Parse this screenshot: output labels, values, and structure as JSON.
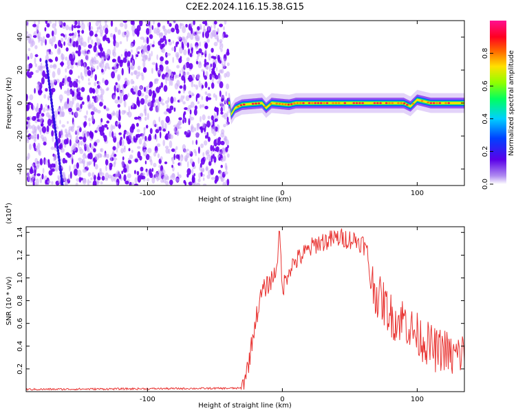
{
  "title": "C2E2.2024.116.15.38.G15",
  "colors": {
    "frame": "#000000",
    "line": "#e8312f",
    "dot_primary": "#6a00f0",
    "dot_light": "#c9a8f5",
    "background": "#ffffff"
  },
  "chart_data": [
    {
      "type": "heatmap",
      "title": "C2E2.2024.116.15.38.G15",
      "xlabel": "Height of straight line (km)",
      "ylabel": "Frequency (Hz)",
      "xlim": [
        -190,
        135
      ],
      "ylim": [
        -50,
        50
      ],
      "xticks": [
        -100,
        0,
        100
      ],
      "xtick_labels": [
        "-100",
        "0",
        "100"
      ],
      "yticks": [
        -40,
        -20,
        0,
        20,
        40
      ],
      "ytick_labels": [
        "-40",
        "-20",
        "0",
        "20",
        "40"
      ],
      "grid": false,
      "colorbar": {
        "label": "Normalized spectral amplitude",
        "range": [
          0,
          1
        ],
        "ticks": [
          0.0,
          0.2,
          0.4,
          0.6,
          0.8
        ],
        "tick_labels": [
          "0.0",
          "0.2",
          "0.4",
          "0.6",
          "0.8"
        ],
        "colormap": "rainbow (purple→blue→cyan→green→yellow→red→magenta)"
      },
      "regions": [
        {
          "name": "noise",
          "x_range": [
            -190,
            -40
          ],
          "freq_range": [
            -50,
            50
          ],
          "amplitude": 0.05
        },
        {
          "name": "signal",
          "x_range": [
            -40,
            135
          ],
          "center_freq": 0,
          "amplitude": 0.9
        }
      ],
      "signal_track": [
        {
          "x": -38,
          "freq": -7
        },
        {
          "x": -35,
          "freq": -3
        },
        {
          "x": -30,
          "freq": -1
        },
        {
          "x": -15,
          "freq": 0
        },
        {
          "x": -12,
          "freq": -3
        },
        {
          "x": -8,
          "freq": 0
        },
        {
          "x": 5,
          "freq": -1
        },
        {
          "x": 10,
          "freq": 0
        },
        {
          "x": 90,
          "freq": 0
        },
        {
          "x": 95,
          "freq": -2
        },
        {
          "x": 100,
          "freq": 2
        },
        {
          "x": 110,
          "freq": 0
        },
        {
          "x": 135,
          "freq": 0
        }
      ]
    },
    {
      "type": "line",
      "title": "",
      "xlabel": "Height of straight line (km)",
      "ylabel": "SNR (10 * v/v)",
      "y_multiplier": "(x10",
      "y_multiplier_exp": "4",
      "y_multiplier_close": ")",
      "xlim": [
        -190,
        135
      ],
      "ylim": [
        0,
        1.45
      ],
      "xticks": [
        -100,
        0,
        100
      ],
      "xtick_labels": [
        "-100",
        "0",
        "100"
      ],
      "yticks": [
        0.2,
        0.4,
        0.6,
        0.8,
        1.0,
        1.2,
        1.4
      ],
      "ytick_labels": [
        "0.2",
        "0.4",
        "0.6",
        "0.8",
        "1.0",
        "1.2",
        "1.4"
      ],
      "grid": false,
      "series": [
        {
          "color": "#e8312f",
          "x": [
            -190,
            -30,
            -25,
            -20,
            -15,
            -10,
            -5,
            -2,
            0,
            5,
            10,
            15,
            20,
            25,
            30,
            35,
            40,
            45,
            50,
            55,
            60,
            63,
            65,
            70,
            75,
            80,
            85,
            90,
            95,
            100,
            105,
            110,
            115,
            120,
            125,
            130,
            135
          ],
          "y": [
            0.02,
            0.03,
            0.25,
            0.62,
            0.88,
            0.95,
            1.05,
            1.38,
            0.9,
            1.08,
            1.15,
            1.2,
            1.25,
            1.3,
            1.32,
            1.33,
            1.35,
            1.35,
            1.34,
            1.33,
            1.3,
            1.22,
            1.02,
            0.85,
            0.78,
            0.68,
            0.62,
            0.65,
            0.55,
            0.5,
            0.45,
            0.4,
            0.35,
            0.38,
            0.3,
            0.32,
            0.35
          ]
        }
      ]
    }
  ]
}
